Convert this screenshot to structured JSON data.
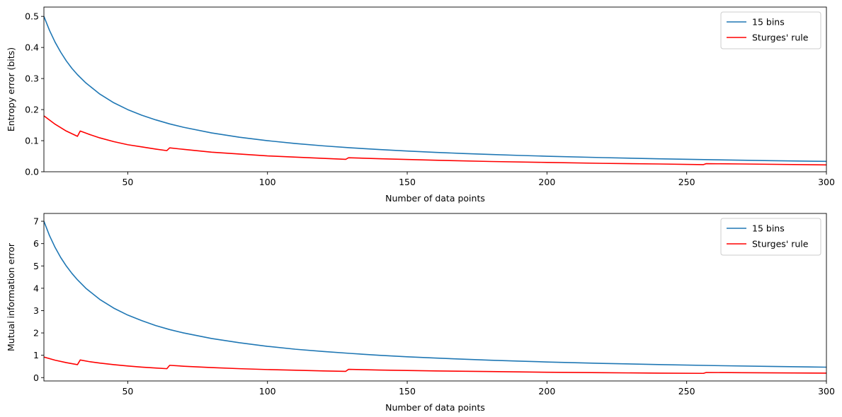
{
  "chart_data": [
    {
      "type": "line",
      "title": "",
      "xlabel": "Number of data points",
      "ylabel": "Entropy error (bits)",
      "xlim": [
        20,
        300
      ],
      "ylim": [
        0,
        0.53
      ],
      "xticks": [
        50,
        100,
        150,
        200,
        250,
        300
      ],
      "yticks": [
        0.0,
        0.1,
        0.2,
        0.3,
        0.4,
        0.5
      ],
      "ytick_labels": [
        "0.0",
        "0.1",
        "0.2",
        "0.3",
        "0.4",
        "0.5"
      ],
      "legend_position": "top-right",
      "series": [
        {
          "name": "15 bins",
          "color": "#1f77b4",
          "points": [
            [
              20,
              0.5
            ],
            [
              22,
              0.455
            ],
            [
              24,
              0.417
            ],
            [
              26,
              0.385
            ],
            [
              28,
              0.357
            ],
            [
              30,
              0.333
            ],
            [
              32,
              0.3125
            ],
            [
              35,
              0.286
            ],
            [
              40,
              0.25
            ],
            [
              45,
              0.222
            ],
            [
              50,
              0.2
            ],
            [
              55,
              0.182
            ],
            [
              60,
              0.167
            ],
            [
              65,
              0.154
            ],
            [
              70,
              0.143
            ],
            [
              80,
              0.125
            ],
            [
              90,
              0.111
            ],
            [
              100,
              0.1
            ],
            [
              110,
              0.0909
            ],
            [
              120,
              0.0833
            ],
            [
              130,
              0.0769
            ],
            [
              140,
              0.0714
            ],
            [
              150,
              0.0667
            ],
            [
              160,
              0.0625
            ],
            [
              170,
              0.0588
            ],
            [
              180,
              0.0556
            ],
            [
              190,
              0.0526
            ],
            [
              200,
              0.05
            ],
            [
              220,
              0.0455
            ],
            [
              240,
              0.0417
            ],
            [
              260,
              0.0385
            ],
            [
              280,
              0.0357
            ],
            [
              300,
              0.0333
            ]
          ]
        },
        {
          "name": "Sturges' rule",
          "color": "#ff0000",
          "points": [
            [
              20,
              0.18
            ],
            [
              24,
              0.153
            ],
            [
              28,
              0.131
            ],
            [
              32,
              0.114
            ],
            [
              33,
              0.131
            ],
            [
              36,
              0.121
            ],
            [
              40,
              0.109
            ],
            [
              45,
              0.097
            ],
            [
              50,
              0.087
            ],
            [
              55,
              0.08
            ],
            [
              60,
              0.073
            ],
            [
              64,
              0.068
            ],
            [
              65,
              0.077
            ],
            [
              70,
              0.072
            ],
            [
              80,
              0.063
            ],
            [
              90,
              0.057
            ],
            [
              100,
              0.051
            ],
            [
              110,
              0.047
            ],
            [
              120,
              0.043
            ],
            [
              128,
              0.04
            ],
            [
              129,
              0.045
            ],
            [
              140,
              0.042
            ],
            [
              160,
              0.037
            ],
            [
              180,
              0.033
            ],
            [
              200,
              0.03
            ],
            [
              220,
              0.027
            ],
            [
              240,
              0.025
            ],
            [
              256,
              0.023
            ],
            [
              257,
              0.026
            ],
            [
              270,
              0.025
            ],
            [
              300,
              0.022
            ]
          ]
        }
      ]
    },
    {
      "type": "line",
      "title": "",
      "xlabel": "Number of data points",
      "ylabel": "Mutual information error",
      "xlim": [
        20,
        300
      ],
      "ylim": [
        -0.15,
        7.35
      ],
      "xticks": [
        50,
        100,
        150,
        200,
        250,
        300
      ],
      "yticks": [
        0,
        1,
        2,
        3,
        4,
        5,
        6,
        7
      ],
      "ytick_labels": [
        "0",
        "1",
        "2",
        "3",
        "4",
        "5",
        "6",
        "7"
      ],
      "legend_position": "top-right",
      "series": [
        {
          "name": "15 bins",
          "color": "#1f77b4",
          "points": [
            [
              20,
              7.0
            ],
            [
              22,
              6.36
            ],
            [
              24,
              5.83
            ],
            [
              26,
              5.38
            ],
            [
              28,
              5.0
            ],
            [
              30,
              4.67
            ],
            [
              32,
              4.38
            ],
            [
              35,
              4.0
            ],
            [
              40,
              3.5
            ],
            [
              45,
              3.11
            ],
            [
              50,
              2.8
            ],
            [
              55,
              2.55
            ],
            [
              60,
              2.33
            ],
            [
              65,
              2.15
            ],
            [
              70,
              2.0
            ],
            [
              80,
              1.75
            ],
            [
              90,
              1.56
            ],
            [
              100,
              1.4
            ],
            [
              110,
              1.27
            ],
            [
              120,
              1.17
            ],
            [
              130,
              1.08
            ],
            [
              140,
              1.0
            ],
            [
              150,
              0.933
            ],
            [
              160,
              0.875
            ],
            [
              170,
              0.824
            ],
            [
              180,
              0.778
            ],
            [
              190,
              0.737
            ],
            [
              200,
              0.7
            ],
            [
              220,
              0.636
            ],
            [
              240,
              0.583
            ],
            [
              260,
              0.538
            ],
            [
              280,
              0.5
            ],
            [
              300,
              0.467
            ]
          ]
        },
        {
          "name": "Sturges' rule",
          "color": "#ff0000",
          "points": [
            [
              20,
              0.92
            ],
            [
              24,
              0.78
            ],
            [
              28,
              0.67
            ],
            [
              32,
              0.58
            ],
            [
              33,
              0.79
            ],
            [
              36,
              0.72
            ],
            [
              40,
              0.65
            ],
            [
              45,
              0.58
            ],
            [
              50,
              0.52
            ],
            [
              55,
              0.47
            ],
            [
              60,
              0.43
            ],
            [
              64,
              0.4
            ],
            [
              65,
              0.55
            ],
            [
              70,
              0.51
            ],
            [
              80,
              0.45
            ],
            [
              90,
              0.4
            ],
            [
              100,
              0.36
            ],
            [
              110,
              0.33
            ],
            [
              120,
              0.3
            ],
            [
              128,
              0.28
            ],
            [
              129,
              0.37
            ],
            [
              140,
              0.34
            ],
            [
              160,
              0.3
            ],
            [
              180,
              0.27
            ],
            [
              200,
              0.24
            ],
            [
              220,
              0.22
            ],
            [
              240,
              0.2
            ],
            [
              256,
              0.19
            ],
            [
              257,
              0.23
            ],
            [
              270,
              0.22
            ],
            [
              300,
              0.2
            ]
          ]
        }
      ]
    }
  ]
}
